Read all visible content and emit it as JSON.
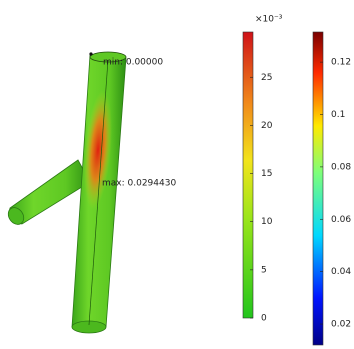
{
  "annotations": {
    "min": "min: 0.00000",
    "max": "max: 0.0294430"
  },
  "colorbars": [
    {
      "multiplier": "×10⁻³",
      "range": [
        0,
        29.7
      ],
      "ticks": [
        0,
        5,
        10,
        15,
        20,
        25
      ]
    },
    {
      "range": [
        0.012,
        0.1315
      ],
      "ticks": [
        0.02,
        0.04,
        0.06,
        0.08,
        0.1,
        0.12
      ]
    }
  ]
}
